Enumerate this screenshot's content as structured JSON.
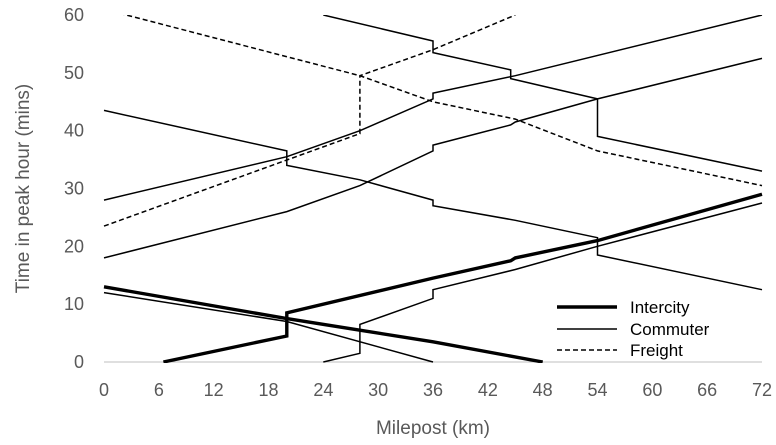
{
  "chart_data": {
    "type": "line",
    "title": "",
    "xlabel": "Milepost (km)",
    "ylabel": "Time in peak hour (mins)",
    "xlim": [
      0,
      72
    ],
    "ylim": [
      0,
      60
    ],
    "x_ticks": [
      "0",
      "6",
      "12",
      "18",
      "24",
      "30",
      "36",
      "42",
      "48",
      "54",
      "60",
      "66",
      "72"
    ],
    "y_ticks": [
      "0",
      "10",
      "20",
      "30",
      "40",
      "50",
      "60"
    ],
    "grid": false,
    "legend_position": "bottom-right",
    "legend": {
      "intercity_label": "Intercity",
      "commuter_label": "Commuter",
      "freight_label": "Freight"
    },
    "colors": {
      "line": "#000000",
      "axis": "#bfbfbf",
      "text": "#595959"
    },
    "series": [
      {
        "name": "Intercity",
        "style": "thick",
        "points": [
          [
            6.5,
            0
          ],
          [
            20,
            4.5
          ],
          [
            20,
            8.5
          ],
          [
            36,
            14.5
          ],
          [
            44.5,
            17.5
          ],
          [
            45,
            18
          ],
          [
            54,
            21
          ],
          [
            72,
            29
          ]
        ]
      },
      {
        "name": "Intercity",
        "style": "thick",
        "points": [
          [
            0,
            13
          ],
          [
            20,
            7.5
          ],
          [
            28,
            5.5
          ],
          [
            36,
            3.5
          ],
          [
            48,
            0
          ]
        ]
      },
      {
        "name": "Commuter",
        "style": "thin",
        "points": [
          [
            24,
            0
          ],
          [
            28,
            1.5
          ],
          [
            28,
            6.5
          ],
          [
            36,
            11
          ],
          [
            36,
            12.5
          ],
          [
            45,
            16
          ],
          [
            54,
            20
          ],
          [
            72,
            27.5
          ]
        ]
      },
      {
        "name": "Commuter",
        "style": "thin",
        "points": [
          [
            0,
            12
          ],
          [
            20,
            7
          ],
          [
            36,
            0
          ]
        ]
      },
      {
        "name": "Commuter",
        "style": "thin",
        "points": [
          [
            0,
            18
          ],
          [
            20,
            26
          ],
          [
            28,
            30.5
          ],
          [
            36,
            36.5
          ],
          [
            36,
            37.5
          ],
          [
            44.5,
            41
          ],
          [
            45,
            41.5
          ],
          [
            54,
            45.5
          ],
          [
            72,
            52.5
          ]
        ]
      },
      {
        "name": "Commuter",
        "style": "thin",
        "points": [
          [
            0,
            28
          ],
          [
            20,
            35.5
          ],
          [
            28,
            40
          ],
          [
            36,
            45.5
          ],
          [
            36,
            46.5
          ],
          [
            45,
            49.5
          ],
          [
            72,
            60
          ]
        ]
      },
      {
        "name": "Commuter",
        "style": "thin",
        "points": [
          [
            0,
            43.5
          ],
          [
            20,
            36.5
          ],
          [
            20,
            34
          ],
          [
            28,
            31.5
          ],
          [
            36,
            28
          ],
          [
            36,
            27
          ],
          [
            45,
            24.5
          ],
          [
            54,
            21.5
          ],
          [
            54,
            18.5
          ],
          [
            72,
            12.5
          ]
        ]
      },
      {
        "name": "Commuter",
        "style": "thin",
        "points": [
          [
            24,
            60
          ],
          [
            36,
            55.5
          ],
          [
            36,
            53.5
          ],
          [
            44.5,
            50.5
          ],
          [
            44.5,
            49
          ],
          [
            54,
            45.5
          ],
          [
            54,
            39
          ],
          [
            72,
            33
          ]
        ]
      },
      {
        "name": "Freight",
        "style": "dashed",
        "points": [
          [
            0,
            23.5
          ],
          [
            28,
            39.5
          ],
          [
            28,
            49.5
          ],
          [
            36,
            54
          ],
          [
            45,
            60
          ]
        ]
      },
      {
        "name": "Freight",
        "style": "dashed",
        "points": [
          [
            0,
            61
          ],
          [
            28,
            49.5
          ],
          [
            36,
            45
          ],
          [
            45,
            42
          ],
          [
            54,
            36.5
          ],
          [
            72,
            30.5
          ]
        ]
      }
    ]
  }
}
